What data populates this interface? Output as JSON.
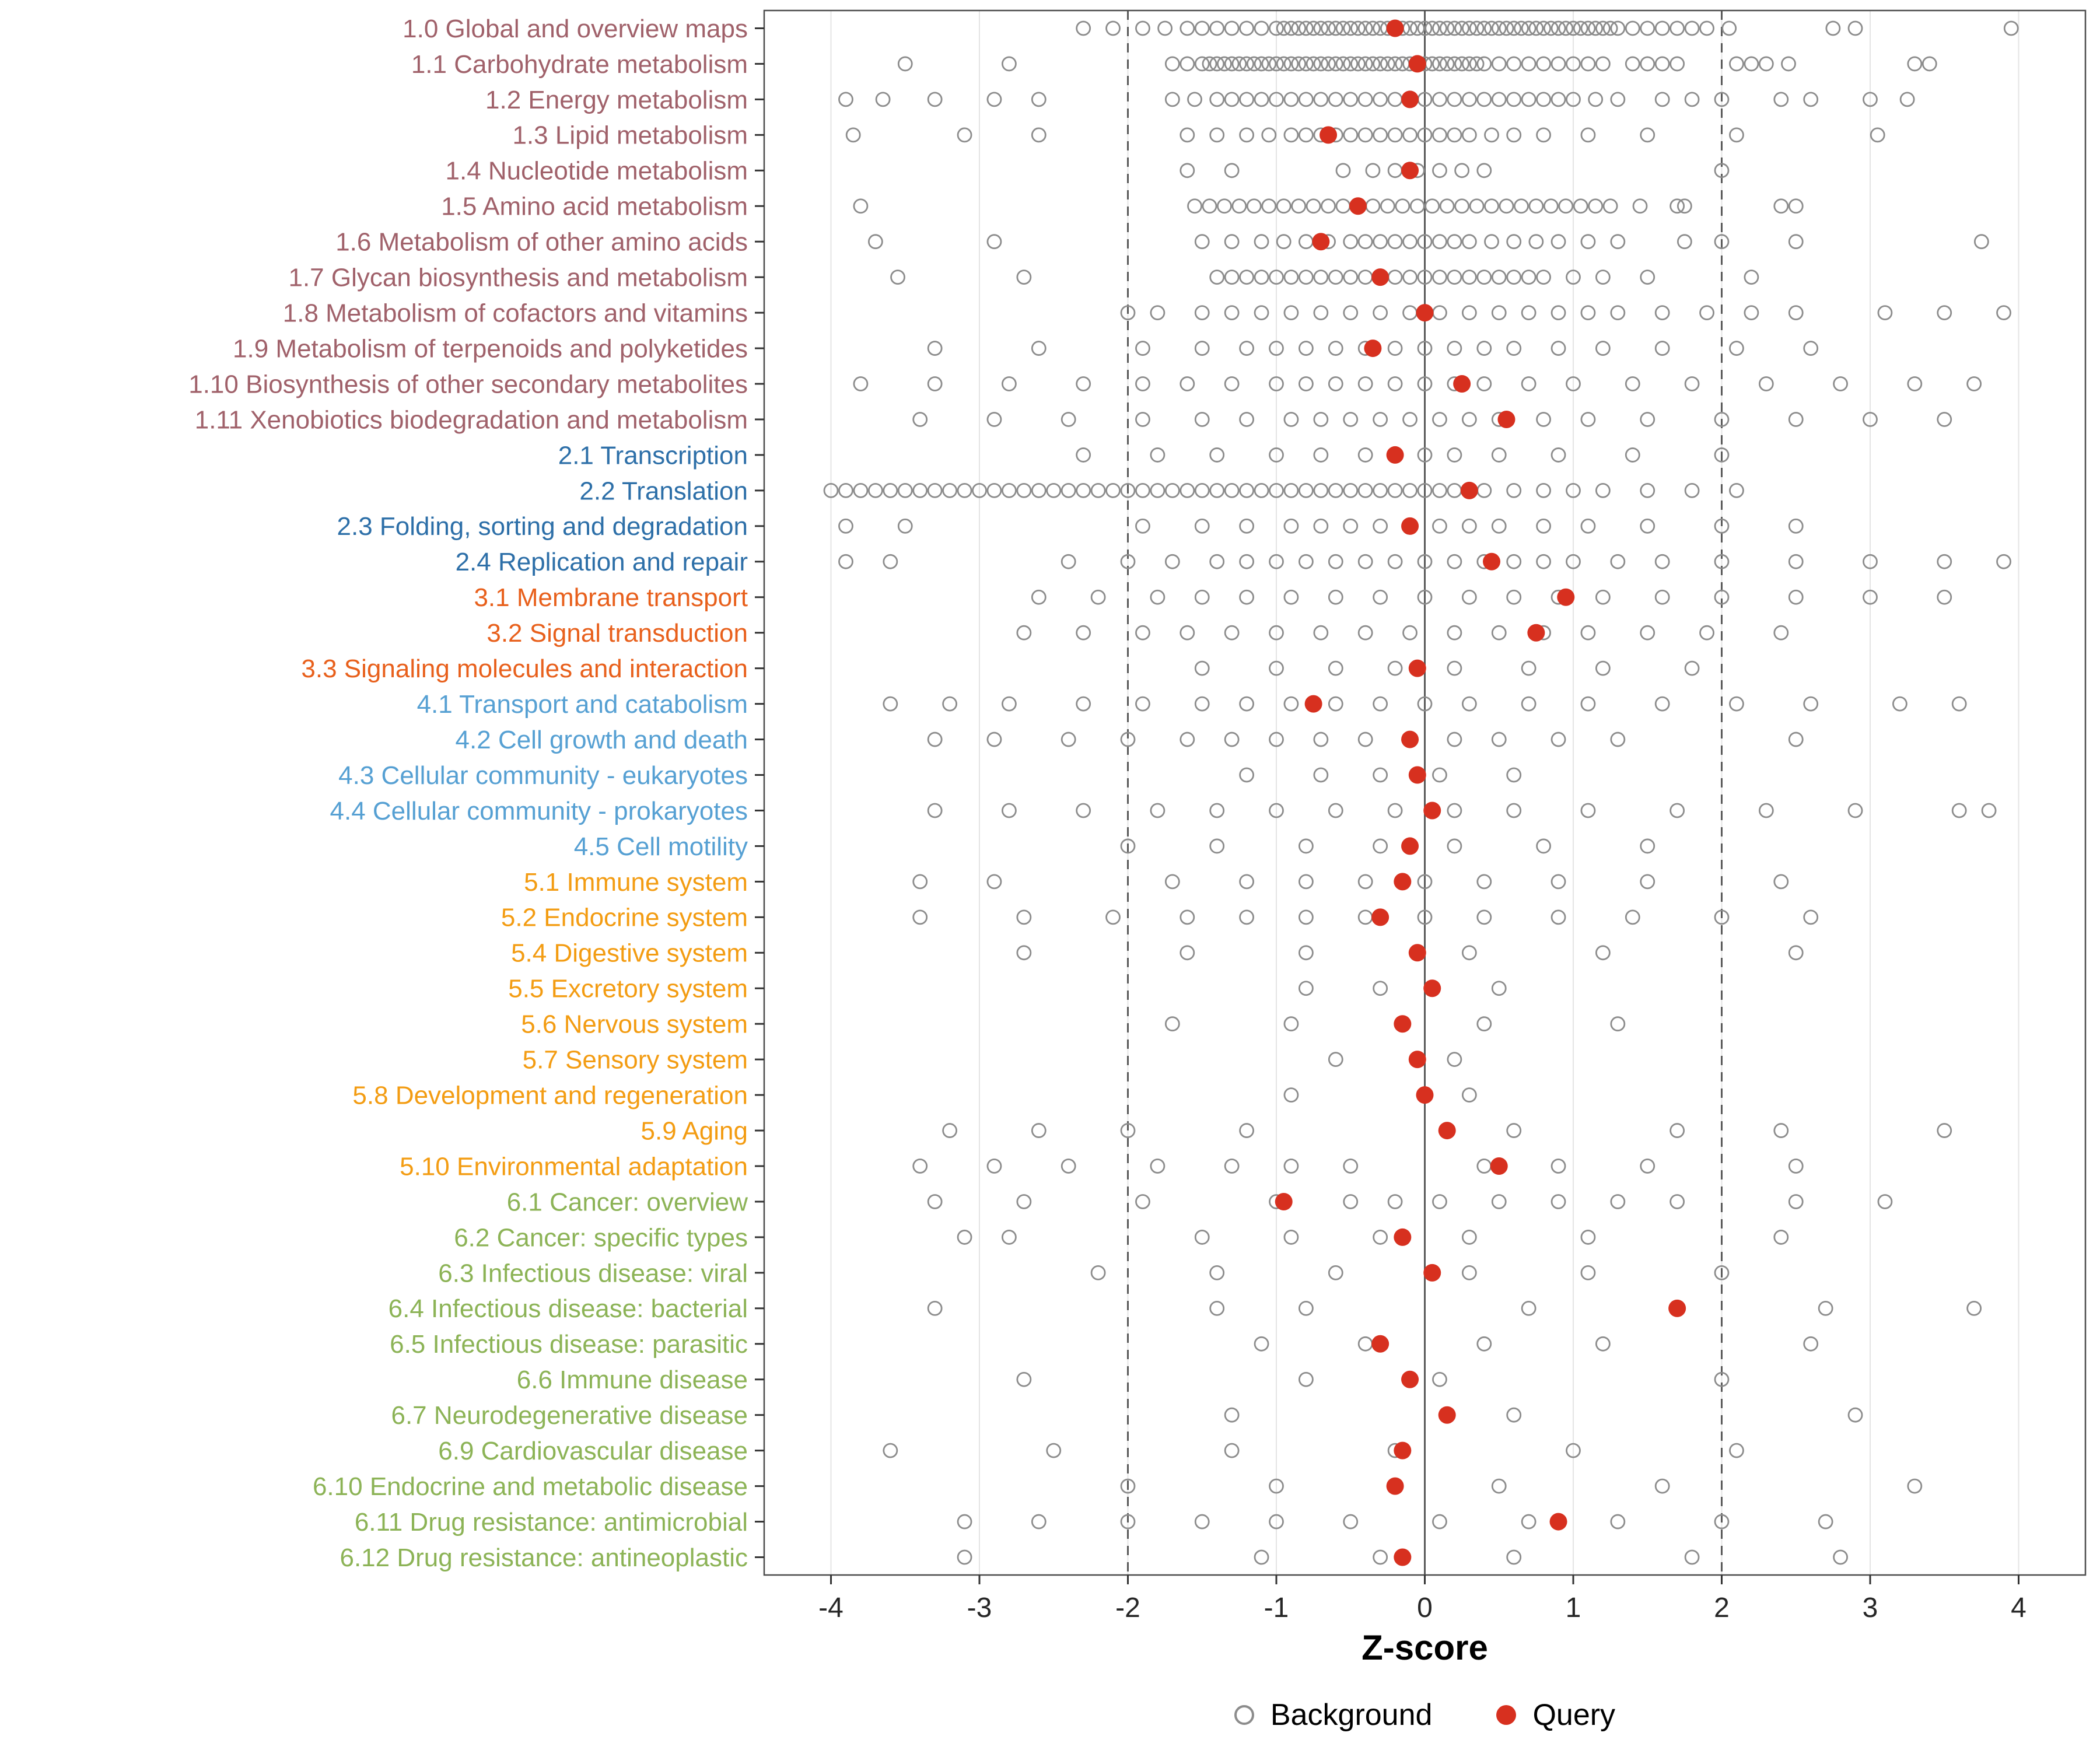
{
  "chart_data": {
    "type": "scatter",
    "title": "",
    "xlabel": "Z-score",
    "ylabel": "",
    "xlim": [
      -4.45,
      4.45
    ],
    "x_ticks": [
      -4,
      -3,
      -2,
      -1,
      0,
      1,
      2,
      3,
      4
    ],
    "reference_lines": {
      "solid": [
        0
      ],
      "dashed": [
        -2,
        2
      ]
    },
    "grid": true,
    "legend_position": "bottom",
    "series_legend": [
      {
        "name": "Background",
        "marker": "open-circle"
      },
      {
        "name": "Query",
        "marker": "filled-circle"
      }
    ],
    "colors": {
      "background_point": "#8C8C8C",
      "query_point": "#D7301F",
      "reference": "#595959",
      "grid": "#E4E4E4",
      "axis_text": "#262626",
      "groups": {
        "metabolism": "#A0616A",
        "genetic-information-processing": "#2D6FA8",
        "environmental-information-processing": "#E8601C",
        "cellular-processes": "#56A0D3",
        "organismal-systems": "#F39C12",
        "human-diseases": "#8CB356"
      }
    },
    "rows": [
      {
        "label": "1.0 Global and overview maps",
        "group": "metabolism",
        "query": -0.2,
        "background": [
          -2.3,
          -2.1,
          -1.9,
          -1.75,
          -1.6,
          -1.5,
          -1.4,
          -1.3,
          -1.2,
          -1.1,
          -1.0,
          -0.95,
          -0.9,
          -0.85,
          -0.8,
          -0.75,
          -0.7,
          -0.65,
          -0.6,
          -0.55,
          -0.5,
          -0.45,
          -0.4,
          -0.35,
          -0.3,
          -0.25,
          -0.2,
          -0.15,
          -0.1,
          -0.05,
          0,
          0.05,
          0.1,
          0.15,
          0.2,
          0.25,
          0.3,
          0.35,
          0.4,
          0.45,
          0.5,
          0.55,
          0.6,
          0.65,
          0.7,
          0.75,
          0.8,
          0.85,
          0.9,
          0.95,
          1.0,
          1.05,
          1.1,
          1.15,
          1.2,
          1.25,
          1.3,
          1.4,
          1.5,
          1.6,
          1.7,
          1.8,
          1.9,
          2.05,
          2.75,
          2.9,
          3.95
        ]
      },
      {
        "label": "1.1 Carbohydrate metabolism",
        "group": "metabolism",
        "query": -0.05,
        "background": [
          -3.5,
          -2.8,
          -1.7,
          -1.6,
          -1.5,
          -1.45,
          -1.4,
          -1.35,
          -1.3,
          -1.25,
          -1.2,
          -1.15,
          -1.1,
          -1.05,
          -1.0,
          -0.95,
          -0.9,
          -0.85,
          -0.8,
          -0.75,
          -0.7,
          -0.65,
          -0.6,
          -0.55,
          -0.5,
          -0.45,
          -0.4,
          -0.35,
          -0.3,
          -0.25,
          -0.2,
          -0.15,
          -0.1,
          -0.05,
          0,
          0.05,
          0.1,
          0.15,
          0.2,
          0.25,
          0.3,
          0.35,
          0.4,
          0.5,
          0.6,
          0.7,
          0.8,
          0.9,
          1.0,
          1.1,
          1.2,
          1.4,
          1.5,
          1.6,
          1.7,
          2.1,
          2.2,
          2.3,
          2.45,
          3.3,
          3.4
        ]
      },
      {
        "label": "1.2 Energy metabolism",
        "group": "metabolism",
        "query": -0.1,
        "background": [
          -3.9,
          -3.65,
          -3.3,
          -2.9,
          -2.6,
          -1.7,
          -1.55,
          -1.4,
          -1.3,
          -1.2,
          -1.1,
          -1.0,
          -0.9,
          -0.8,
          -0.7,
          -0.6,
          -0.5,
          -0.4,
          -0.3,
          -0.2,
          -0.1,
          0,
          0.1,
          0.2,
          0.3,
          0.4,
          0.5,
          0.6,
          0.7,
          0.8,
          0.9,
          1.0,
          1.15,
          1.3,
          1.6,
          1.8,
          2.0,
          2.4,
          2.6,
          3.0,
          3.25
        ]
      },
      {
        "label": "1.3 Lipid metabolism",
        "group": "metabolism",
        "query": -0.65,
        "background": [
          -3.85,
          -3.1,
          -2.6,
          -1.6,
          -1.4,
          -1.2,
          -1.05,
          -0.9,
          -0.8,
          -0.7,
          -0.6,
          -0.5,
          -0.4,
          -0.3,
          -0.2,
          -0.1,
          0,
          0.1,
          0.2,
          0.3,
          0.45,
          0.6,
          0.8,
          1.1,
          1.5,
          2.1,
          3.05
        ]
      },
      {
        "label": "1.4 Nucleotide metabolism",
        "group": "metabolism",
        "query": -0.1,
        "background": [
          -1.6,
          -1.3,
          -0.55,
          -0.35,
          -0.2,
          -0.05,
          0.1,
          0.25,
          0.4,
          2.0
        ]
      },
      {
        "label": "1.5 Amino acid metabolism",
        "group": "metabolism",
        "query": -0.45,
        "background": [
          -3.8,
          -1.55,
          -1.45,
          -1.35,
          -1.25,
          -1.15,
          -1.05,
          -0.95,
          -0.85,
          -0.75,
          -0.65,
          -0.55,
          -0.45,
          -0.35,
          -0.25,
          -0.15,
          -0.05,
          0.05,
          0.15,
          0.25,
          0.35,
          0.45,
          0.55,
          0.65,
          0.75,
          0.85,
          0.95,
          1.05,
          1.15,
          1.25,
          1.45,
          1.7,
          1.75,
          2.4,
          2.5
        ]
      },
      {
        "label": "1.6 Metabolism of other amino acids",
        "group": "metabolism",
        "query": -0.7,
        "background": [
          -3.7,
          -2.9,
          -1.5,
          -1.3,
          -1.1,
          -0.95,
          -0.8,
          -0.65,
          -0.5,
          -0.4,
          -0.3,
          -0.2,
          -0.1,
          0,
          0.1,
          0.2,
          0.3,
          0.45,
          0.6,
          0.75,
          0.9,
          1.1,
          1.3,
          1.75,
          2.0,
          2.5,
          3.75
        ]
      },
      {
        "label": "1.7 Glycan biosynthesis and metabolism",
        "group": "metabolism",
        "query": -0.3,
        "background": [
          -3.55,
          -2.7,
          -1.4,
          -1.3,
          -1.2,
          -1.1,
          -1.0,
          -0.9,
          -0.8,
          -0.7,
          -0.6,
          -0.5,
          -0.4,
          -0.3,
          -0.2,
          -0.1,
          0,
          0.1,
          0.2,
          0.3,
          0.4,
          0.5,
          0.6,
          0.7,
          0.8,
          1.0,
          1.2,
          1.5,
          2.2
        ]
      },
      {
        "label": "1.8 Metabolism of cofactors and vitamins",
        "group": "metabolism",
        "query": 0,
        "background": [
          -2.0,
          -1.8,
          -1.5,
          -1.3,
          -1.1,
          -0.9,
          -0.7,
          -0.5,
          -0.3,
          -0.1,
          0.1,
          0.3,
          0.5,
          0.7,
          0.9,
          1.1,
          1.3,
          1.6,
          1.9,
          2.2,
          2.5,
          3.1,
          3.5,
          3.9
        ]
      },
      {
        "label": "1.9 Metabolism of terpenoids and polyketides",
        "group": "metabolism",
        "query": -0.35,
        "background": [
          -3.3,
          -2.6,
          -1.9,
          -1.5,
          -1.2,
          -1.0,
          -0.8,
          -0.6,
          -0.4,
          -0.2,
          0,
          0.2,
          0.4,
          0.6,
          0.9,
          1.2,
          1.6,
          2.1,
          2.6
        ]
      },
      {
        "label": "1.10 Biosynthesis of other secondary metabolites",
        "group": "metabolism",
        "query": 0.25,
        "background": [
          -3.8,
          -3.3,
          -2.8,
          -2.3,
          -1.9,
          -1.6,
          -1.3,
          -1.0,
          -0.8,
          -0.6,
          -0.4,
          -0.2,
          0,
          0.2,
          0.4,
          0.7,
          1.0,
          1.4,
          1.8,
          2.3,
          2.8,
          3.3,
          3.7
        ]
      },
      {
        "label": "1.11 Xenobiotics biodegradation and metabolism",
        "group": "metabolism",
        "query": 0.55,
        "background": [
          -3.4,
          -2.9,
          -2.4,
          -1.9,
          -1.5,
          -1.2,
          -0.9,
          -0.7,
          -0.5,
          -0.3,
          -0.1,
          0.1,
          0.3,
          0.5,
          0.8,
          1.1,
          1.5,
          2.0,
          2.5,
          3.0,
          3.5
        ]
      },
      {
        "label": "2.1 Transcription",
        "group": "genetic-information-processing",
        "query": -0.2,
        "background": [
          -2.3,
          -1.8,
          -1.4,
          -1.0,
          -0.7,
          -0.4,
          -0.2,
          0,
          0.2,
          0.5,
          0.9,
          1.4,
          2.0
        ]
      },
      {
        "label": "2.2 Translation",
        "group": "genetic-information-processing",
        "query": 0.3,
        "background": [
          -4.0,
          -3.9,
          -3.8,
          -3.7,
          -3.6,
          -3.5,
          -3.4,
          -3.3,
          -3.2,
          -3.1,
          -3.0,
          -2.9,
          -2.8,
          -2.7,
          -2.6,
          -2.5,
          -2.4,
          -2.3,
          -2.2,
          -2.1,
          -2.0,
          -1.9,
          -1.8,
          -1.7,
          -1.6,
          -1.5,
          -1.4,
          -1.3,
          -1.2,
          -1.1,
          -1.0,
          -0.9,
          -0.8,
          -0.7,
          -0.6,
          -0.5,
          -0.4,
          -0.3,
          -0.2,
          -0.1,
          0,
          0.1,
          0.2,
          0.4,
          0.6,
          0.8,
          1.0,
          1.2,
          1.5,
          1.8,
          2.1
        ]
      },
      {
        "label": "2.3 Folding, sorting and degradation",
        "group": "genetic-information-processing",
        "query": -0.1,
        "background": [
          -3.9,
          -3.5,
          -1.9,
          -1.5,
          -1.2,
          -0.9,
          -0.7,
          -0.5,
          -0.3,
          -0.1,
          0.1,
          0.3,
          0.5,
          0.8,
          1.1,
          1.5,
          2.0,
          2.5
        ]
      },
      {
        "label": "2.4 Replication and repair",
        "group": "genetic-information-processing",
        "query": 0.45,
        "background": [
          -3.9,
          -3.6,
          -2.4,
          -2.0,
          -1.7,
          -1.4,
          -1.2,
          -1.0,
          -0.8,
          -0.6,
          -0.4,
          -0.2,
          0,
          0.2,
          0.4,
          0.6,
          0.8,
          1.0,
          1.3,
          1.6,
          2.0,
          2.5,
          3.0,
          3.5,
          3.9
        ]
      },
      {
        "label": "3.1 Membrane transport",
        "group": "environmental-information-processing",
        "query": 0.95,
        "background": [
          -2.6,
          -2.2,
          -1.8,
          -1.5,
          -1.2,
          -0.9,
          -0.6,
          -0.3,
          0,
          0.3,
          0.6,
          0.9,
          1.2,
          1.6,
          2.0,
          2.5,
          3.0,
          3.5
        ]
      },
      {
        "label": "3.2 Signal transduction",
        "group": "environmental-information-processing",
        "query": 0.75,
        "background": [
          -2.7,
          -2.3,
          -1.9,
          -1.6,
          -1.3,
          -1.0,
          -0.7,
          -0.4,
          -0.1,
          0.2,
          0.5,
          0.8,
          1.1,
          1.5,
          1.9,
          2.4
        ]
      },
      {
        "label": "3.3 Signaling molecules and interaction",
        "group": "environmental-information-processing",
        "query": -0.05,
        "background": [
          -1.5,
          -1.0,
          -0.6,
          -0.2,
          0.2,
          0.7,
          1.2,
          1.8
        ]
      },
      {
        "label": "4.1 Transport and catabolism",
        "group": "cellular-processes",
        "query": -0.75,
        "background": [
          -3.6,
          -3.2,
          -2.8,
          -2.3,
          -1.9,
          -1.5,
          -1.2,
          -0.9,
          -0.6,
          -0.3,
          0,
          0.3,
          0.7,
          1.1,
          1.6,
          2.1,
          2.6,
          3.2,
          3.6
        ]
      },
      {
        "label": "4.2 Cell growth and death",
        "group": "cellular-processes",
        "query": -0.1,
        "background": [
          -3.3,
          -2.9,
          -2.4,
          -2.0,
          -1.6,
          -1.3,
          -1.0,
          -0.7,
          -0.4,
          -0.1,
          0.2,
          0.5,
          0.9,
          1.3,
          2.5
        ]
      },
      {
        "label": "4.3 Cellular community - eukaryotes",
        "group": "cellular-processes",
        "query": -0.05,
        "background": [
          -1.2,
          -0.7,
          -0.3,
          0.1,
          0.6
        ]
      },
      {
        "label": "4.4 Cellular community - prokaryotes",
        "group": "cellular-processes",
        "query": 0.05,
        "background": [
          -3.3,
          -2.8,
          -2.3,
          -1.8,
          -1.4,
          -1.0,
          -0.6,
          -0.2,
          0.2,
          0.6,
          1.1,
          1.7,
          2.3,
          2.9,
          3.6,
          3.8
        ]
      },
      {
        "label": "4.5 Cell motility",
        "group": "cellular-processes",
        "query": -0.1,
        "background": [
          -2.0,
          -1.4,
          -0.8,
          -0.3,
          0.2,
          0.8,
          1.5
        ]
      },
      {
        "label": "5.1 Immune system",
        "group": "organismal-systems",
        "query": -0.15,
        "background": [
          -3.4,
          -2.9,
          -1.7,
          -1.2,
          -0.8,
          -0.4,
          0,
          0.4,
          0.9,
          1.5,
          2.4
        ]
      },
      {
        "label": "5.2 Endocrine system",
        "group": "organismal-systems",
        "query": -0.3,
        "background": [
          -3.4,
          -2.7,
          -2.1,
          -1.6,
          -1.2,
          -0.8,
          -0.4,
          0,
          0.4,
          0.9,
          1.4,
          2.0,
          2.6
        ]
      },
      {
        "label": "5.4 Digestive system",
        "group": "organismal-systems",
        "query": -0.05,
        "background": [
          -2.7,
          -1.6,
          -0.8,
          0.3,
          1.2,
          2.5
        ]
      },
      {
        "label": "5.5 Excretory system",
        "group": "organismal-systems",
        "query": 0.05,
        "background": [
          -0.8,
          -0.3,
          0.5
        ]
      },
      {
        "label": "5.6 Nervous system",
        "group": "organismal-systems",
        "query": -0.15,
        "background": [
          -1.7,
          -0.9,
          0.4,
          1.3
        ]
      },
      {
        "label": "5.7 Sensory system",
        "group": "organismal-systems",
        "query": -0.05,
        "background": [
          -0.6,
          0.2
        ]
      },
      {
        "label": "5.8 Development and regeneration",
        "group": "organismal-systems",
        "query": 0,
        "background": [
          -0.9,
          0.3
        ]
      },
      {
        "label": "5.9 Aging",
        "group": "organismal-systems",
        "query": 0.15,
        "background": [
          -3.2,
          -2.6,
          -2.0,
          -1.2,
          0.6,
          1.7,
          2.4,
          3.5
        ]
      },
      {
        "label": "5.10 Environmental adaptation",
        "group": "organismal-systems",
        "query": 0.5,
        "background": [
          -3.4,
          -2.9,
          -2.4,
          -1.8,
          -1.3,
          -0.9,
          -0.5,
          0.4,
          0.9,
          1.5,
          2.5
        ]
      },
      {
        "label": "6.1 Cancer: overview",
        "group": "human-diseases",
        "query": -0.95,
        "background": [
          -3.3,
          -2.7,
          -1.9,
          -1.0,
          -0.5,
          -0.2,
          0.1,
          0.5,
          0.9,
          1.3,
          1.7,
          2.5,
          3.1
        ]
      },
      {
        "label": "6.2 Cancer: specific types",
        "group": "human-diseases",
        "query": -0.15,
        "background": [
          -3.1,
          -2.8,
          -1.5,
          -0.9,
          -0.3,
          0.3,
          1.1,
          2.4
        ]
      },
      {
        "label": "6.3 Infectious disease: viral",
        "group": "human-diseases",
        "query": 0.05,
        "background": [
          -2.2,
          -1.4,
          -0.6,
          0.3,
          1.1,
          2.0
        ]
      },
      {
        "label": "6.4 Infectious disease: bacterial",
        "group": "human-diseases",
        "query": 1.7,
        "background": [
          -3.3,
          -1.4,
          -0.8,
          0.7,
          2.7,
          3.7
        ]
      },
      {
        "label": "6.5 Infectious disease: parasitic",
        "group": "human-diseases",
        "query": -0.3,
        "background": [
          -1.1,
          -0.4,
          0.4,
          1.2,
          2.6
        ]
      },
      {
        "label": "6.6 Immune disease",
        "group": "human-diseases",
        "query": -0.1,
        "background": [
          -2.7,
          -0.8,
          0.1,
          2.0
        ]
      },
      {
        "label": "6.7 Neurodegenerative disease",
        "group": "human-diseases",
        "query": 0.15,
        "background": [
          -1.3,
          0.6,
          2.9
        ]
      },
      {
        "label": "6.9 Cardiovascular disease",
        "group": "human-diseases",
        "query": -0.15,
        "background": [
          -3.6,
          -2.5,
          -1.3,
          -0.2,
          1.0,
          2.1
        ]
      },
      {
        "label": "6.10 Endocrine and metabolic disease",
        "group": "human-diseases",
        "query": -0.2,
        "background": [
          -2.0,
          -1.0,
          0.5,
          1.6,
          3.3
        ]
      },
      {
        "label": "6.11 Drug resistance: antimicrobial",
        "group": "human-diseases",
        "query": 0.9,
        "background": [
          -3.1,
          -2.6,
          -2.0,
          -1.5,
          -1.0,
          -0.5,
          0.1,
          0.7,
          1.3,
          2.0,
          2.7
        ]
      },
      {
        "label": "6.12 Drug resistance: antineoplastic",
        "group": "human-diseases",
        "query": -0.15,
        "background": [
          -3.1,
          -1.1,
          -0.3,
          0.6,
          1.8,
          2.8
        ]
      }
    ]
  }
}
